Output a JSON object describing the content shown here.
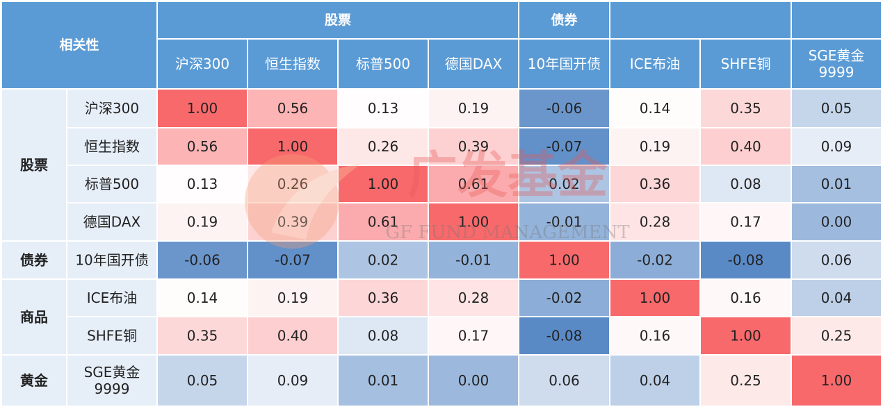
{
  "corner_label": "相关性",
  "column_groups": [
    {
      "label": "股票",
      "span": 4
    },
    {
      "label": "债券",
      "span": 1
    },
    {
      "label": "",
      "span": 2
    },
    {
      "label": "",
      "span": 1
    }
  ],
  "row_groups": [
    {
      "label": "股票",
      "span": 4
    },
    {
      "label": "债券",
      "span": 1
    },
    {
      "label": "商品",
      "span": 2
    },
    {
      "label": "黄金",
      "span": 1
    }
  ],
  "watermark": {
    "brand": "广发基金",
    "brand_en": "GF FUND MANAGEMENT"
  },
  "colors": {
    "header": "#5b9bd5",
    "high": "#f8696b",
    "mid": "#ffffff",
    "low": "#5a8ac6"
  },
  "chart_data": {
    "type": "heatmap",
    "title": "",
    "columns": [
      "沪深300",
      "恒生指数",
      "标普500",
      "德国DAX",
      "10年国开债",
      "ICE布油",
      "SHFE铜",
      "SGE黄金\n9999"
    ],
    "rows": [
      "沪深300",
      "恒生指数",
      "标普500",
      "德国DAX",
      "10年国开债",
      "ICE布油",
      "SHFE铜",
      "SGE黄金\n9999"
    ],
    "values": [
      [
        1.0,
        0.56,
        0.13,
        0.19,
        -0.06,
        0.14,
        0.35,
        0.05
      ],
      [
        0.56,
        1.0,
        0.26,
        0.39,
        -0.07,
        0.19,
        0.4,
        0.09
      ],
      [
        0.13,
        0.26,
        1.0,
        0.61,
        0.02,
        0.36,
        0.08,
        0.01
      ],
      [
        0.19,
        0.39,
        0.61,
        1.0,
        -0.01,
        0.28,
        0.17,
        0.0
      ],
      [
        -0.06,
        -0.07,
        0.02,
        -0.01,
        1.0,
        -0.02,
        -0.08,
        0.06
      ],
      [
        0.14,
        0.19,
        0.36,
        0.28,
        -0.02,
        1.0,
        0.16,
        0.04
      ],
      [
        0.35,
        0.4,
        0.08,
        0.17,
        -0.08,
        0.16,
        1.0,
        0.25
      ],
      [
        0.05,
        0.09,
        0.01,
        0.0,
        0.06,
        0.04,
        0.25,
        1.0
      ]
    ]
  }
}
